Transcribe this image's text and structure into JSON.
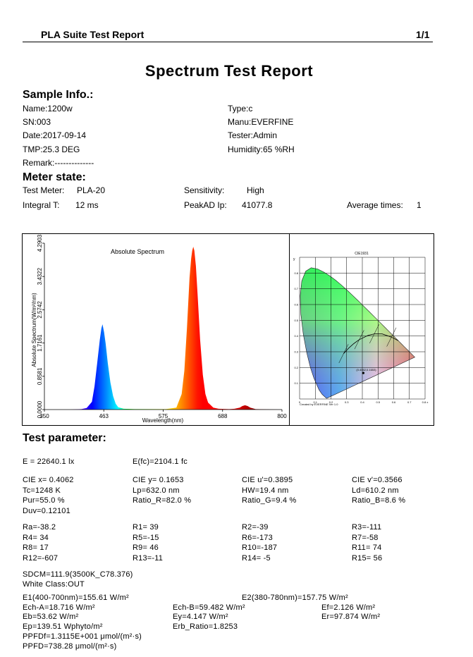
{
  "header": {
    "suite": "PLA Suite Test Report",
    "page": "1/1"
  },
  "title": "Spectrum  Test Report",
  "sample": {
    "heading": "Sample Info.:",
    "left": [
      "Name:1200w",
      "SN:003",
      "Date:2017-09-14",
      "TMP:25.3 DEG",
      "Remark:--------------"
    ],
    "right": [
      "Type:c",
      "Manu:EVERFINE",
      "Tester:Admin",
      "Humidity:65 %RH"
    ]
  },
  "meter": {
    "heading": "Meter state:",
    "test_meter_label": "Test Meter:",
    "test_meter_value": "PLA-20",
    "sensitivity_label": "Sensitivity:",
    "sensitivity_value": "High",
    "integral_label": "Integral T:",
    "integral_value": "12 ms",
    "peak_label": "PeakAD Ip:",
    "peak_value": "41077.8",
    "avg_label": "Average times:",
    "avg_value": "1"
  },
  "chart_data": [
    {
      "type": "area",
      "title": "Absolute Spectrum",
      "xlabel": "Wavelength(nm)",
      "ylabel": "Absolute Spectrum(W/m²/nm)",
      "xlim": [
        350,
        800
      ],
      "ylim": [
        0,
        4.2903
      ],
      "x_ticks": [
        "350",
        "463",
        "575",
        "688",
        "800"
      ],
      "y_ticks": [
        "0.0000",
        "0.8581",
        "1.7161",
        "2.5742",
        "3.4322",
        "4.2903"
      ],
      "series": [
        {
          "x": [
            350,
            400,
            420,
            430,
            440,
            445,
            450,
            455,
            458,
            460,
            463,
            466,
            470,
            475,
            480,
            485,
            490,
            500,
            520,
            550,
            580,
            600,
            610,
            615,
            620,
            625,
            628,
            630,
            632,
            634,
            637,
            640,
            645,
            650,
            655,
            660,
            670,
            680,
            700,
            710,
            720,
            725,
            730,
            735,
            740,
            750,
            800
          ],
          "y": [
            0.0,
            0.0,
            0.01,
            0.04,
            0.2,
            0.6,
            1.2,
            1.8,
            2.1,
            2.2,
            2.0,
            1.7,
            1.2,
            0.7,
            0.35,
            0.15,
            0.06,
            0.02,
            0.01,
            0.01,
            0.01,
            0.05,
            0.4,
            1.0,
            2.1,
            3.4,
            3.9,
            4.1,
            4.2,
            4.1,
            3.7,
            3.0,
            1.8,
            0.9,
            0.4,
            0.18,
            0.05,
            0.02,
            0.01,
            0.02,
            0.05,
            0.09,
            0.11,
            0.09,
            0.05,
            0.01,
            0.0
          ]
        }
      ]
    },
    {
      "type": "scatter",
      "title": "CIE1931",
      "xlabel": "x",
      "ylabel": "y",
      "xlim": [
        0,
        0.8
      ],
      "ylim": [
        0,
        0.9
      ],
      "x_ticks": [
        "0",
        "0.1",
        "0.2",
        "0.3",
        "0.4",
        "0.5",
        "0.6",
        "0.7",
        "0.8 x"
      ],
      "y_ticks": [
        "0.1",
        "0.2",
        "0.3",
        "0.4",
        "0.5",
        "0.6",
        "0.7",
        "0.8"
      ],
      "point_label": "(0.4062,0.1653)",
      "point": {
        "x": 0.4062,
        "y": 0.1653
      },
      "footer": "Created by EVERFINE  Ver 1.0"
    }
  ],
  "params": {
    "heading": "Test parameter:",
    "E": "E =  22640.1 lx",
    "Efc": "E(fc)=2104.1 fc",
    "cie_x": "CIE x= 0.4062",
    "cie_y": "CIE y= 0.1653",
    "cie_u": "CIE u'=0.3895",
    "cie_v": "CIE v'=0.3566",
    "tc": "Tc=1248 K",
    "lp": "Lp=632.0 nm",
    "hw": "HW=19.4 nm",
    "ld": "Ld=610.2 nm",
    "pur": "Pur=55.0 %",
    "ratio_r": "Ratio_R=82.0 %",
    "ratio_g": "Ratio_G=9.4 %",
    "ratio_b": "Ratio_B=8.6 %",
    "duv": "Duv=0.12101",
    "ra": "Ra=-38.2",
    "r1": "R1= 39",
    "r2": "R2=-39",
    "r3": "R3=-111",
    "r4": "R4= 34",
    "r5": "R5=-15",
    "r6": "R6=-173",
    "r7": "R7=-58",
    "r8": "R8= 17",
    "r9": "R9= 46",
    "r10": "R10=-187",
    "r11": "R11= 74",
    "r12": "R12=-607",
    "r13": "R13=-11",
    "r14": "R14= -5",
    "r15": "R15= 56",
    "sdcm": "SDCM=111.9(3500K_C78.376)",
    "white": "White Class:OUT",
    "e1": "E1(400-700nm)=155.61 W/m²",
    "e2": "E2(380-780nm)=157.75 W/m²",
    "ech_a": "Ech-A=18.716 W/m²",
    "ech_b": "Ech-B=59.482 W/m²",
    "ef": "Ef=2.126 W/m²",
    "eb": "Eb=53.62 W/m²",
    "ey": "Ey=4.147 W/m²",
    "er": "Er=97.874 W/m²",
    "ep": "Ep=139.51 Wphyto/m²",
    "erb": "Erb_Ratio=1.8253",
    "ppfdf": "PPFDf=1.3115E+001 μmol/(m²·s)",
    "ppfd": "PPFD=738.28 μmol/(m²·s)"
  }
}
